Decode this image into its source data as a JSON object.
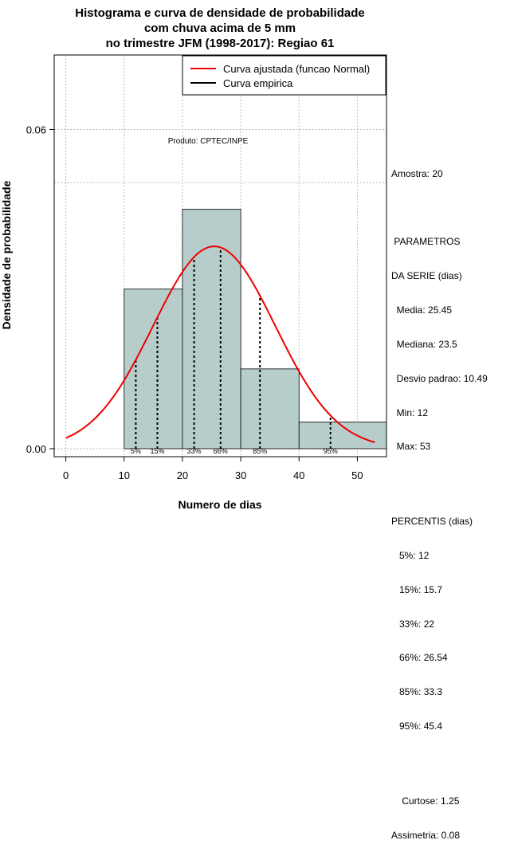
{
  "chart_data": {
    "type": "histogram",
    "title_lines": [
      "Histograma e curva de densidade de probabilidade",
      "com chuva acima de 5 mm",
      "no trimestre JFM (1998-2017): Regiao 61"
    ],
    "xlabel": "Numero de dias",
    "ylabel": "Densidade de probabilidade",
    "xlim": [
      -2,
      55
    ],
    "ylim": [
      -0.0015,
      0.074
    ],
    "x_ticks": [
      0,
      10,
      20,
      30,
      40,
      50
    ],
    "y_ticks": [
      0.0,
      0.06
    ],
    "y_tick_labels": [
      "0.00",
      "0.06"
    ],
    "x_gridlines": [
      0,
      10,
      20,
      30,
      40,
      50
    ],
    "y_gridlines": [
      0.0,
      0.06,
      0.05
    ],
    "bins": [
      {
        "start": 10,
        "end": 20,
        "density": 0.03
      },
      {
        "start": 20,
        "end": 30,
        "density": 0.045
      },
      {
        "start": 30,
        "end": 40,
        "density": 0.015
      },
      {
        "start": 40,
        "end": 55,
        "density": 0.005
      }
    ],
    "normal_curve": {
      "mean": 25.45,
      "sd": 10.49,
      "x_from": 0,
      "x_to": 53
    },
    "percentile_lines": [
      {
        "x": 12,
        "label": "5%"
      },
      {
        "x": 15.7,
        "label": "15%"
      },
      {
        "x": 22,
        "label": "33%"
      },
      {
        "x": 26.54,
        "label": "66%"
      },
      {
        "x": 33.3,
        "label": "85%"
      },
      {
        "x": 45.4,
        "label": "95%"
      }
    ],
    "legend": {
      "position": "top-right",
      "entries": [
        {
          "label": "Curva ajustada (funcao Normal)",
          "color": "#ee0000"
        },
        {
          "label": "Curva empirica",
          "color": "#000000"
        }
      ]
    },
    "annotation": "Produto: CPTEC/INPE",
    "colors": {
      "bar_fill": "#b7cdcc",
      "curve": "#ee0000",
      "grid": "#bebebe"
    }
  },
  "stats": {
    "amostra": "Amostra: 20",
    "param_title_1": " PARAMETROS",
    "param_title_2": "DA SERIE (dias)",
    "media": "  Media: 25.45",
    "mediana": "  Mediana: 23.5",
    "desvio": "  Desvio padrao: 10.49",
    "min": "  Min: 12",
    "max": "  Max: 53",
    "perc_title": "PERCENTIS (dias)",
    "p5": "   5%: 12",
    "p15": "   15%: 15.7",
    "p33": "   33%: 22",
    "p66": "   66%: 26.54",
    "p85": "   85%: 33.3",
    "p95": "   95%: 45.4",
    "curtose": "    Curtose: 1.25",
    "assimetria": "Assimetria: 0.08"
  }
}
